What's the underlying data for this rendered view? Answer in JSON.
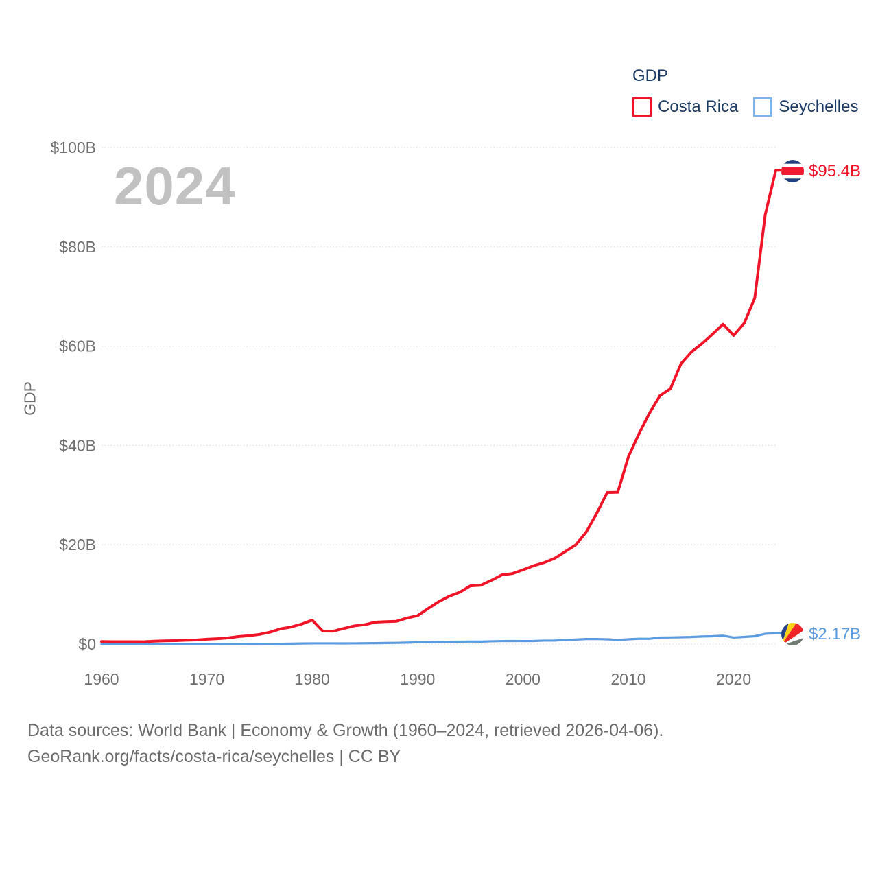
{
  "watermark": "2024",
  "legend": {
    "title": "GDP",
    "items": [
      {
        "label": "Costa Rica",
        "color": "#f01428"
      },
      {
        "label": "Seychelles",
        "color": "#7db2ec"
      }
    ]
  },
  "y_axis": {
    "title": "GDP",
    "ticks": [
      "$0",
      "$20B",
      "$40B",
      "$60B",
      "$80B",
      "$100B"
    ]
  },
  "x_axis": {
    "ticks": [
      "1960",
      "1970",
      "1980",
      "1990",
      "2000",
      "2010",
      "2020"
    ]
  },
  "end_labels": {
    "costa_rica": {
      "value": "$95.4B",
      "color": "#f01428",
      "flag": "costa-rica-flag"
    },
    "seychelles": {
      "value": "$2.17B",
      "color": "#5b9ce0",
      "flag": "seychelles-flag"
    }
  },
  "footer": {
    "line1": "Data sources: World Bank | Economy & Growth (1960–2024, retrieved 2026-04-06).",
    "line2": "GeoRank.org/facts/costa-rica/seychelles | CC BY"
  },
  "chart_data": {
    "type": "line",
    "title": "GDP",
    "ylabel": "GDP",
    "x_start": 1960,
    "x_end": 2024,
    "ylim": [
      0,
      100
    ],
    "yticks_billions": [
      0,
      20,
      40,
      60,
      80,
      100
    ],
    "xticks": [
      1960,
      1970,
      1980,
      1990,
      2000,
      2010,
      2020
    ],
    "grid": "horizontal-dotted",
    "legend_position": "top-right",
    "series": [
      {
        "name": "Seychelles",
        "color": "#5b9ce0",
        "stroke_width": 3.2,
        "end_label": "$2.17B",
        "values_billions": [
          0.01,
          0.01,
          0.01,
          0.01,
          0.01,
          0.02,
          0.02,
          0.02,
          0.02,
          0.02,
          0.02,
          0.02,
          0.03,
          0.03,
          0.04,
          0.04,
          0.05,
          0.06,
          0.09,
          0.12,
          0.15,
          0.15,
          0.15,
          0.14,
          0.15,
          0.17,
          0.19,
          0.22,
          0.25,
          0.29,
          0.37,
          0.37,
          0.43,
          0.47,
          0.49,
          0.51,
          0.5,
          0.56,
          0.61,
          0.62,
          0.61,
          0.62,
          0.7,
          0.71,
          0.84,
          0.92,
          1.02,
          1.03,
          0.97,
          0.85,
          0.97,
          1.07,
          1.06,
          1.32,
          1.34,
          1.38,
          1.43,
          1.54,
          1.59,
          1.7,
          1.32,
          1.45,
          1.59,
          2.08,
          2.17
        ]
      },
      {
        "name": "Costa Rica",
        "color": "#f01428",
        "stroke_width": 4,
        "end_label": "$95.4B",
        "values_billions": [
          0.51,
          0.49,
          0.48,
          0.48,
          0.46,
          0.59,
          0.66,
          0.69,
          0.77,
          0.83,
          0.98,
          1.08,
          1.24,
          1.52,
          1.69,
          1.96,
          2.41,
          3.07,
          3.44,
          4.04,
          4.83,
          2.63,
          2.61,
          3.15,
          3.67,
          3.92,
          4.42,
          4.53,
          4.6,
          5.26,
          5.72,
          7.16,
          8.54,
          9.63,
          10.44,
          11.72,
          11.85,
          12.83,
          13.93,
          14.2,
          14.95,
          15.77,
          16.4,
          17.25,
          18.6,
          19.97,
          22.53,
          26.32,
          30.52,
          30.57,
          37.66,
          42.29,
          46.47,
          50.01,
          51.42,
          56.44,
          58.85,
          60.52,
          62.42,
          64.42,
          62.16,
          64.61,
          69.67,
          86.5,
          95.4
        ]
      }
    ]
  }
}
